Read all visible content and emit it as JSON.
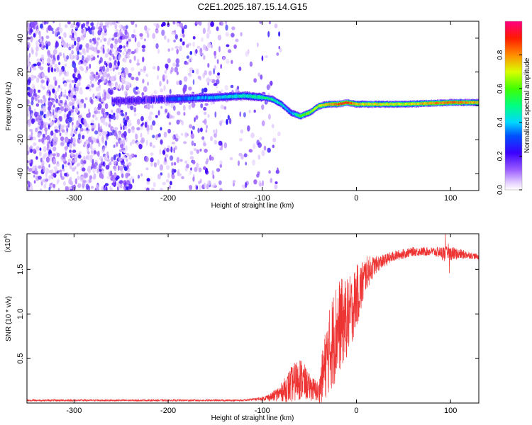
{
  "figure": {
    "title": "C2E1.2025.187.15.14.G15"
  },
  "chart_data": [
    {
      "type": "heatmap",
      "title": "C2E1.2025.187.15.14.G15",
      "xlabel": "Height of straight line (km)",
      "ylabel": "Frequency (Hz)",
      "xlim": [
        -350,
        130
      ],
      "ylim": [
        -50,
        50
      ],
      "x_ticks": [
        -300,
        -200,
        -100,
        0,
        100
      ],
      "y_ticks": [
        -40,
        -20,
        0,
        20,
        40
      ],
      "grid": false,
      "colorbar": {
        "label": "Normalized spectral amplitude",
        "range": [
          0.0,
          1.0
        ],
        "ticks": [
          "0.0",
          "0.2",
          "0.4",
          "0.6",
          "0.8"
        ],
        "colormap": "rainbow (white-violet-blue-cyan-green-yellow-red-magenta)"
      },
      "ridge": {
        "x": [
          -250,
          -200,
          -150,
          -120,
          -100,
          -90,
          -80,
          -70,
          -60,
          -50,
          -40,
          -30,
          -20,
          -10,
          0,
          50,
          100,
          130
        ],
        "frequency": [
          3,
          4,
          5,
          6,
          5,
          4,
          1,
          -4,
          -6,
          -4,
          0,
          1,
          1,
          2,
          1,
          1,
          2,
          2
        ],
        "amplitude": [
          0.2,
          0.3,
          0.4,
          0.45,
          0.5,
          0.5,
          0.45,
          0.35,
          0.6,
          0.65,
          0.7,
          0.75,
          0.85,
          0.9,
          0.75,
          0.7,
          0.85,
          0.75
        ]
      }
    },
    {
      "type": "line",
      "xlabel": "Height of straight line (km)",
      "ylabel": "SNR (10 * v/v)",
      "y_multiplier": "(x10",
      "y_multiplier_exp": "4",
      "y_multiplier_close": ")",
      "xlim": [
        -350,
        130
      ],
      "ylim": [
        0,
        1.9
      ],
      "x_ticks": [
        -300,
        -200,
        -100,
        0,
        100
      ],
      "y_ticks": [
        "0.5",
        "1.0",
        "1.5"
      ],
      "y_tick_values": [
        0.5,
        1.0,
        1.5
      ],
      "grid": false,
      "color": "#ee3333",
      "envelope": {
        "x": [
          -350,
          -200,
          -120,
          -100,
          -90,
          -80,
          -70,
          -60,
          -50,
          -40,
          -35,
          -30,
          -25,
          -20,
          -15,
          -10,
          -5,
          0,
          5,
          10,
          20,
          30,
          40,
          60,
          80,
          100,
          120,
          130
        ],
        "mean": [
          0.03,
          0.03,
          0.03,
          0.05,
          0.07,
          0.12,
          0.2,
          0.28,
          0.18,
          0.12,
          0.35,
          0.55,
          0.7,
          0.85,
          0.9,
          0.95,
          1.05,
          1.2,
          1.3,
          1.45,
          1.55,
          1.6,
          1.65,
          1.7,
          1.7,
          1.68,
          1.66,
          1.64
        ],
        "noise": [
          0.01,
          0.01,
          0.01,
          0.02,
          0.05,
          0.1,
          0.2,
          0.25,
          0.15,
          0.12,
          0.35,
          0.45,
          0.55,
          0.55,
          0.5,
          0.45,
          0.4,
          0.35,
          0.3,
          0.2,
          0.1,
          0.07,
          0.06,
          0.05,
          0.05,
          0.08,
          0.04,
          0.03
        ]
      }
    }
  ]
}
